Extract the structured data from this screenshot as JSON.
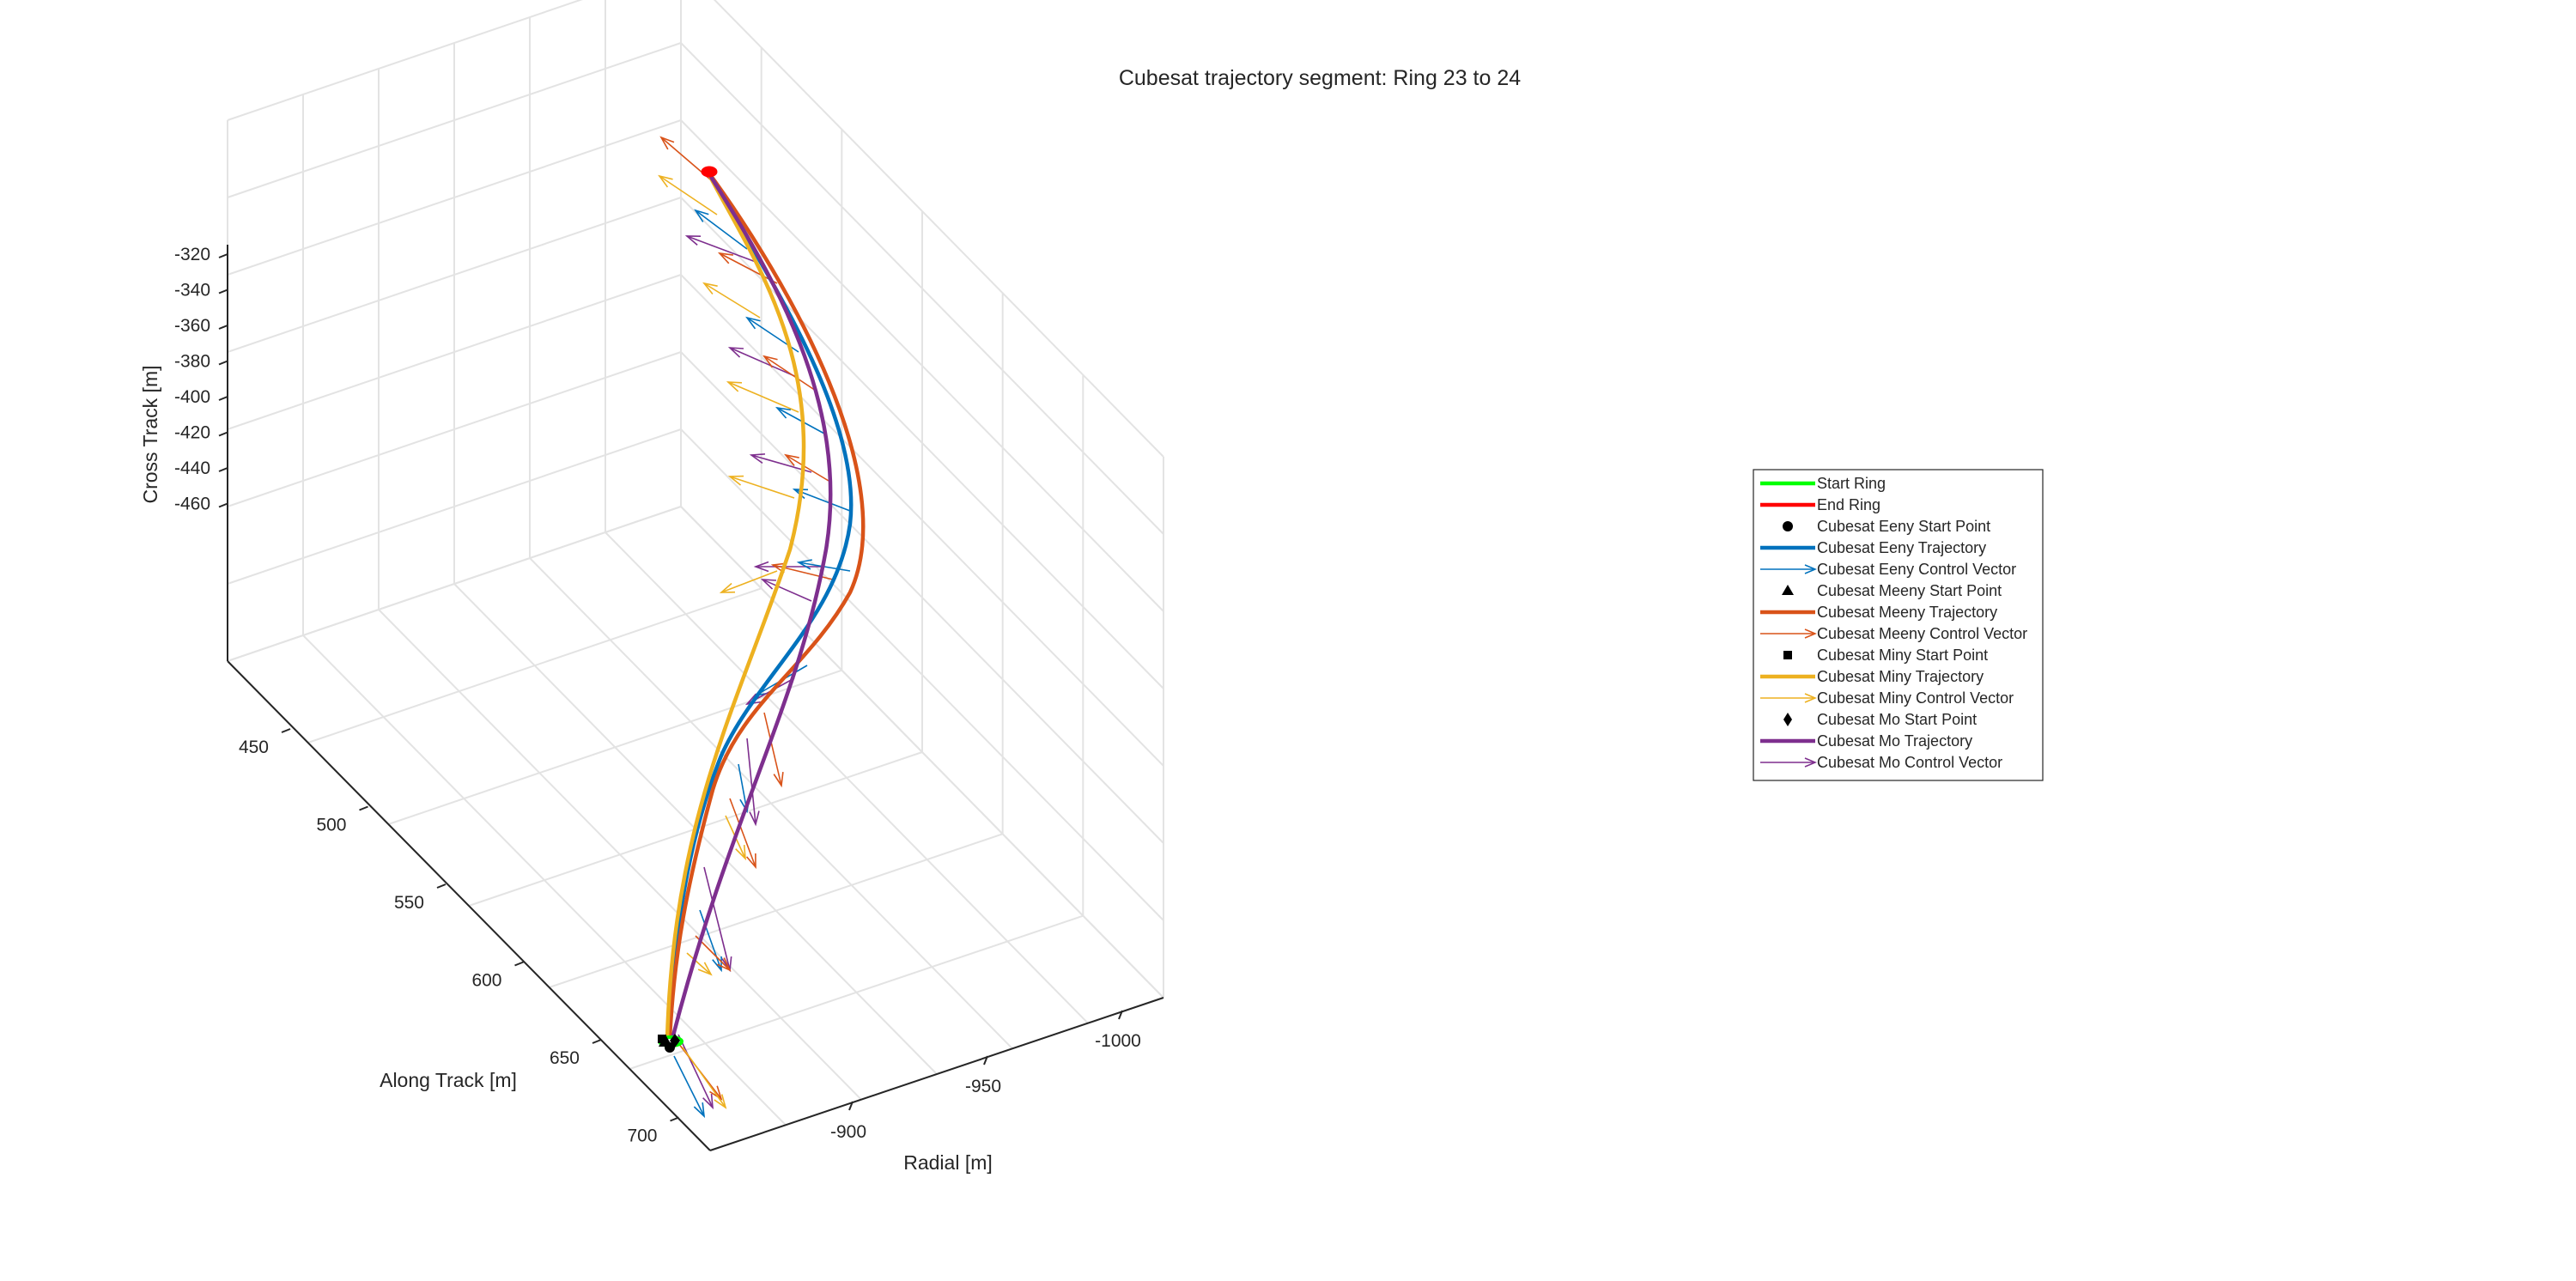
{
  "chart_data": {
    "type": "line",
    "projection": "3d",
    "title": "Cubesat trajectory segment: Ring 23 to 24",
    "axes": {
      "x": {
        "label": "Radial [m]",
        "ticks": [
          -900,
          -950,
          -1000
        ]
      },
      "y": {
        "label": "Along Track [m]",
        "ticks": [
          450,
          500,
          550,
          600,
          650,
          700
        ]
      },
      "z": {
        "label": "Cross Track [m]",
        "ticks": [
          -320,
          -340,
          -360,
          -380,
          -400,
          -420,
          -440,
          -460
        ]
      }
    },
    "grid": true,
    "legend_location": "right",
    "legend": [
      {
        "label": "Start Ring",
        "kind": "line",
        "color": "#00ff00"
      },
      {
        "label": "End Ring",
        "kind": "line",
        "color": "#ff0000"
      },
      {
        "label": "Cubesat Eeny Start Point",
        "kind": "marker",
        "marker": "circle",
        "color": "#000000"
      },
      {
        "label": "Cubesat Eeny Trajectory",
        "kind": "line",
        "color": "#0072bd"
      },
      {
        "label": "Cubesat Eeny Control Vector",
        "kind": "arrow",
        "color": "#0072bd"
      },
      {
        "label": "Cubesat Meeny Start Point",
        "kind": "marker",
        "marker": "triangle",
        "color": "#000000"
      },
      {
        "label": "Cubesat Meeny Trajectory",
        "kind": "line",
        "color": "#d95319"
      },
      {
        "label": "Cubesat Meeny Control Vector",
        "kind": "arrow",
        "color": "#d95319"
      },
      {
        "label": "Cubesat Miny Start Point",
        "kind": "marker",
        "marker": "square",
        "color": "#000000"
      },
      {
        "label": "Cubesat Miny Trajectory",
        "kind": "line",
        "color": "#edb120"
      },
      {
        "label": "Cubesat Miny Control Vector",
        "kind": "arrow",
        "color": "#edb120"
      },
      {
        "label": "Cubesat Mo Start Point",
        "kind": "marker",
        "marker": "diamond",
        "color": "#000000"
      },
      {
        "label": "Cubesat Mo Trajectory",
        "kind": "line",
        "color": "#7e2f8e"
      },
      {
        "label": "Cubesat Mo Control Vector",
        "kind": "arrow",
        "color": "#7e2f8e"
      }
    ],
    "series": [
      {
        "name": "Cubesat Eeny Trajectory",
        "color": "#0072bd"
      },
      {
        "name": "Cubesat Meeny Trajectory",
        "color": "#d95319"
      },
      {
        "name": "Cubesat Miny Trajectory",
        "color": "#edb120"
      },
      {
        "name": "Cubesat Mo Trajectory",
        "color": "#7e2f8e"
      }
    ]
  }
}
